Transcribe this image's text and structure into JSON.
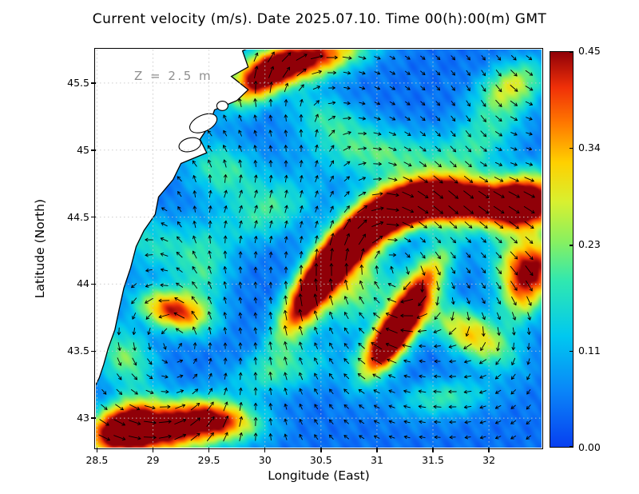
{
  "chart_data": {
    "type": "heatmap",
    "title": "Current velocity (m/s). Date 2025.07.10. Time 00(h):00(m) GMT",
    "annotation": "Z = 2.5 m",
    "xlabel": "Longitude (East)",
    "ylabel": "Latitude (North)",
    "xlim": [
      28.49,
      32.47
    ],
    "ylim": [
      42.78,
      45.75
    ],
    "xticks": {
      "values": [
        28.5,
        29,
        29.5,
        30,
        30.5,
        31,
        31.5,
        32
      ],
      "labels": [
        "28.5",
        "29",
        "29.5",
        "30",
        "30.5",
        "31",
        "31.5",
        "32"
      ]
    },
    "yticks": {
      "values": [
        43,
        43.5,
        44,
        44.5,
        45,
        45.5
      ],
      "labels": [
        "43",
        "43.5",
        "44",
        "44.5",
        "45",
        "45.5"
      ]
    },
    "grid": "dotted",
    "colorbar": {
      "min": 0.0,
      "max": 0.45,
      "units": "m/s",
      "tick_values": [
        0.0,
        0.11,
        0.23,
        0.34,
        0.45
      ],
      "tick_labels": [
        "0.00",
        "0.11",
        "0.23",
        "0.34",
        "0.45"
      ],
      "stops": [
        [
          0.0,
          "#0840f0"
        ],
        [
          0.14,
          "#0a85f8"
        ],
        [
          0.28,
          "#00c8f0"
        ],
        [
          0.42,
          "#30e8b0"
        ],
        [
          0.52,
          "#88f060"
        ],
        [
          0.62,
          "#d8f030"
        ],
        [
          0.72,
          "#ffd000"
        ],
        [
          0.82,
          "#ff7800"
        ],
        [
          0.91,
          "#f03008"
        ],
        [
          1.0,
          "#900008"
        ]
      ]
    },
    "field": {
      "base": 0.045,
      "features": [
        [
          30.4,
          43.92,
          0.42,
          0.3,
          0.11,
          52
        ],
        [
          30.7,
          44.22,
          0.44,
          0.3,
          0.11,
          42
        ],
        [
          31.05,
          44.47,
          0.44,
          0.32,
          0.11,
          22
        ],
        [
          31.45,
          44.62,
          0.4,
          0.35,
          0.11,
          4
        ],
        [
          31.9,
          44.6,
          0.33,
          0.38,
          0.12,
          -4
        ],
        [
          32.33,
          44.62,
          0.44,
          0.22,
          0.14,
          10
        ],
        [
          31.3,
          43.85,
          0.42,
          0.35,
          0.11,
          52
        ],
        [
          31.1,
          43.55,
          0.34,
          0.22,
          0.1,
          45
        ],
        [
          30.3,
          45.66,
          0.45,
          0.4,
          0.11,
          12
        ],
        [
          29.95,
          45.5,
          0.25,
          0.22,
          0.1,
          35
        ],
        [
          29.05,
          42.9,
          0.45,
          0.4,
          0.12,
          4
        ],
        [
          29.55,
          43.0,
          0.28,
          0.28,
          0.1,
          -8
        ],
        [
          28.75,
          42.95,
          0.35,
          0.2,
          0.12,
          20
        ],
        [
          29.18,
          43.8,
          0.36,
          0.22,
          0.1,
          -12
        ],
        [
          31.85,
          43.62,
          0.28,
          0.28,
          0.12,
          -25
        ],
        [
          32.3,
          43.95,
          0.26,
          0.18,
          0.14,
          70
        ],
        [
          30.05,
          44.55,
          0.14,
          0.3,
          0.15,
          20
        ],
        [
          29.45,
          44.1,
          0.13,
          0.25,
          0.18,
          80
        ],
        [
          31.05,
          44.97,
          0.16,
          0.45,
          0.14,
          -5
        ],
        [
          31.95,
          45.1,
          0.13,
          0.3,
          0.15,
          30
        ],
        [
          32.2,
          45.48,
          0.22,
          0.22,
          0.12,
          20
        ],
        [
          30.15,
          43.35,
          0.13,
          0.35,
          0.12,
          10
        ],
        [
          29.62,
          44.85,
          0.15,
          0.15,
          0.25,
          75
        ],
        [
          30.55,
          45.25,
          0.12,
          0.25,
          0.12,
          -15
        ],
        [
          31.6,
          43.15,
          0.14,
          0.3,
          0.1,
          5
        ],
        [
          28.75,
          43.45,
          0.18,
          0.15,
          0.2,
          60
        ],
        [
          29.0,
          44.3,
          0.12,
          0.15,
          0.25,
          80
        ],
        [
          30.85,
          43.95,
          0.18,
          0.25,
          0.15,
          40
        ],
        [
          32.42,
          44.15,
          0.3,
          0.15,
          0.25,
          85
        ]
      ]
    },
    "flow": {
      "drift": [
        0.06,
        0.01
      ],
      "vortices": [
        [
          31.1,
          44.2,
          0.65,
          -1.0
        ],
        [
          29.9,
          44.85,
          0.4,
          0.45
        ],
        [
          29.35,
          43.55,
          0.45,
          0.5
        ],
        [
          32.05,
          43.5,
          0.4,
          -0.45
        ],
        [
          30.35,
          45.38,
          0.35,
          -0.4
        ],
        [
          31.9,
          44.95,
          0.45,
          0.4
        ]
      ]
    },
    "coastline": [
      [
        29.95,
        45.8
      ],
      [
        29.8,
        45.74
      ],
      [
        29.85,
        45.62
      ],
      [
        29.7,
        45.55
      ],
      [
        29.85,
        45.45
      ],
      [
        29.75,
        45.37
      ],
      [
        29.55,
        45.3
      ],
      [
        29.5,
        45.18
      ],
      [
        29.42,
        45.08
      ],
      [
        29.48,
        44.98
      ],
      [
        29.25,
        44.9
      ],
      [
        29.18,
        44.78
      ],
      [
        29.05,
        44.65
      ],
      [
        29.02,
        44.52
      ],
      [
        28.92,
        44.4
      ],
      [
        28.85,
        44.28
      ],
      [
        28.8,
        44.12
      ],
      [
        28.74,
        43.97
      ],
      [
        28.7,
        43.82
      ],
      [
        28.66,
        43.66
      ],
      [
        28.6,
        43.52
      ],
      [
        28.56,
        43.4
      ],
      [
        28.52,
        43.3
      ],
      [
        28.46,
        43.2
      ]
    ],
    "lakes": [
      {
        "lon": 29.45,
        "lat": 45.2,
        "rx": 0.13,
        "ry": 0.06,
        "rot": -25
      },
      {
        "lon": 29.33,
        "lat": 45.04,
        "rx": 0.1,
        "ry": 0.05,
        "rot": -15
      },
      {
        "lon": 29.62,
        "lat": 45.33,
        "rx": 0.05,
        "ry": 0.035,
        "rot": 0
      }
    ]
  }
}
